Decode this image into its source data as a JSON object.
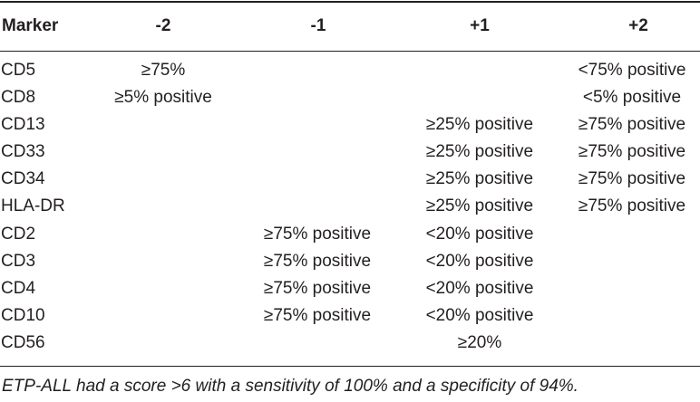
{
  "table": {
    "headers": {
      "marker": "Marker",
      "minus2": "-2",
      "minus1": "-1",
      "plus1": "+1",
      "plus2": "+2"
    },
    "rows": [
      {
        "marker": "CD5",
        "minus2": "≥75%",
        "minus1": "",
        "plus1": "",
        "plus2": "<75% positive"
      },
      {
        "marker": "CD8",
        "minus2": "≥5% positive",
        "minus1": "",
        "plus1": "",
        "plus2": "<5% positive"
      },
      {
        "marker": "CD13",
        "minus2": "",
        "minus1": "",
        "plus1": "≥25% positive",
        "plus2": "≥75% positive"
      },
      {
        "marker": "CD33",
        "minus2": "",
        "minus1": "",
        "plus1": "≥25% positive",
        "plus2": "≥75% positive"
      },
      {
        "marker": "CD34",
        "minus2": "",
        "minus1": "",
        "plus1": "≥25% positive",
        "plus2": "≥75% positive"
      },
      {
        "marker": "HLA-DR",
        "minus2": "",
        "minus1": "",
        "plus1": "≥25% positive",
        "plus2": "≥75% positive"
      },
      {
        "marker": "CD2",
        "minus2": "",
        "minus1": "≥75% positive",
        "plus1": "<20% positive",
        "plus2": ""
      },
      {
        "marker": "CD3",
        "minus2": "",
        "minus1": "≥75% positive",
        "plus1": "<20% positive",
        "plus2": ""
      },
      {
        "marker": "CD4",
        "minus2": "",
        "minus1": "≥75% positive",
        "plus1": "<20% positive",
        "plus2": ""
      },
      {
        "marker": "CD10",
        "minus2": "",
        "minus1": "≥75% positive",
        "plus1": "<20% positive",
        "plus2": ""
      },
      {
        "marker": "CD56",
        "minus2": "",
        "minus1": "",
        "plus1": "≥20%",
        "plus2": ""
      }
    ],
    "footnote": "ETP-ALL had a score >6 with a sensitivity of 100% and a specificity of 94%."
  }
}
